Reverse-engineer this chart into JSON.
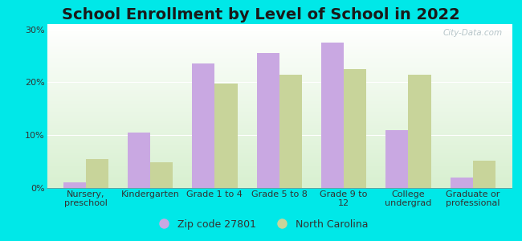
{
  "title": "School Enrollment by Level of School in 2022",
  "categories": [
    "Nursery,\npreschool",
    "Kindergarten",
    "Grade 1 to 4",
    "Grade 5 to 8",
    "Grade 9 to\n12",
    "College\nundergrad",
    "Graduate or\nprofessional"
  ],
  "zip_values": [
    1.0,
    10.5,
    23.5,
    25.5,
    27.5,
    11.0,
    2.0
  ],
  "nc_values": [
    5.5,
    4.8,
    19.8,
    21.5,
    22.5,
    21.5,
    5.2
  ],
  "zip_color": "#c9a8e2",
  "nc_color": "#c8d49a",
  "background_color": "#00e8e8",
  "grad_top": "#ffffff",
  "grad_bottom": "#d8f0d0",
  "yticks": [
    0,
    10,
    20,
    30
  ],
  "ylim": [
    0,
    31
  ],
  "legend_zip_label": "Zip code 27801",
  "legend_nc_label": "North Carolina",
  "watermark": "City-Data.com",
  "title_fontsize": 14,
  "tick_fontsize": 8,
  "legend_fontsize": 9,
  "bar_width": 0.35
}
